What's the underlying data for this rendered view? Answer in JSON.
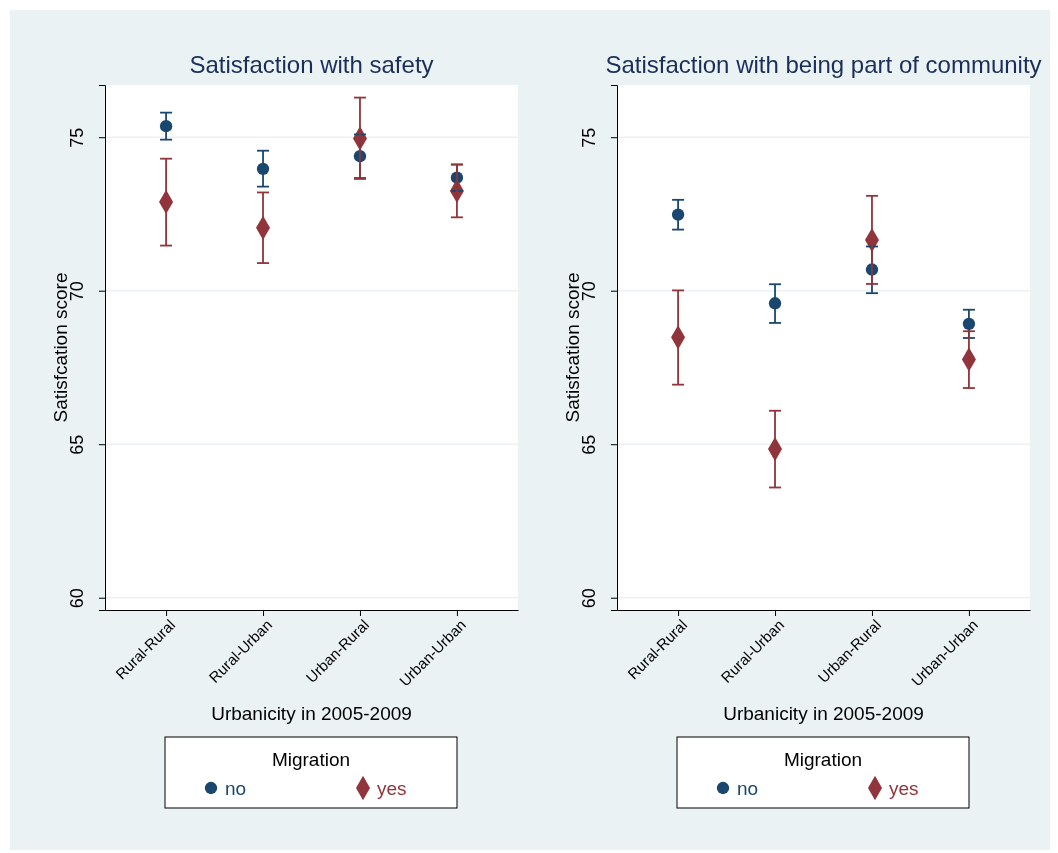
{
  "chart_data": [
    {
      "type": "scatter",
      "title": "Satisfaction with safety",
      "xlabel": "Urbanicity in 2005-2009",
      "ylabel": "Satisfcation score",
      "legend_title": "Migration",
      "legend": "bottom",
      "grid": "y",
      "categories": [
        "Rural-Rural",
        "Rural-Urban",
        "Urban-Rural",
        "Urban-Urban"
      ],
      "ylim": [
        59.6,
        76.7
      ],
      "yticks": [
        60,
        65,
        70,
        75
      ],
      "series": [
        {
          "name": "no",
          "color": "#1a476f",
          "marker": "circle",
          "values": [
            75.36,
            73.97,
            74.38,
            73.68
          ],
          "errors": [
            [
              74.92,
              75.8
            ],
            [
              73.39,
              74.56
            ],
            [
              73.67,
              75.09
            ],
            [
              73.25,
              74.11
            ]
          ]
        },
        {
          "name": "yes",
          "color": "#90353b",
          "marker": "diamond",
          "values": [
            72.89,
            72.05,
            74.96,
            73.25
          ],
          "errors": [
            [
              71.47,
              74.3
            ],
            [
              70.9,
              73.2
            ],
            [
              73.64,
              76.29
            ],
            [
              72.39,
              74.11
            ]
          ]
        }
      ]
    },
    {
      "type": "scatter",
      "title": "Satisfaction with being part of community",
      "xlabel": "Urbanicity in 2005-2009",
      "ylabel": "Satisfcation score",
      "legend_title": "Migration",
      "legend": "bottom",
      "grid": "y",
      "categories": [
        "Rural-Rural",
        "Rural-Urban",
        "Urban-Rural",
        "Urban-Urban"
      ],
      "ylim": [
        59.6,
        76.7
      ],
      "yticks": [
        60,
        65,
        70,
        75
      ],
      "series": [
        {
          "name": "no",
          "color": "#1a476f",
          "marker": "circle",
          "values": [
            72.48,
            69.59,
            70.69,
            68.92
          ],
          "errors": [
            [
              71.99,
              72.96
            ],
            [
              68.95,
              70.21
            ],
            [
              69.92,
              71.44
            ],
            [
              68.46,
              69.38
            ]
          ]
        },
        {
          "name": "yes",
          "color": "#90353b",
          "marker": "diamond",
          "values": [
            68.48,
            64.84,
            71.65,
            67.76
          ],
          "errors": [
            [
              66.94,
              70.01
            ],
            [
              63.59,
              66.09
            ],
            [
              70.22,
              73.09
            ],
            [
              66.83,
              68.68
            ]
          ]
        }
      ]
    }
  ]
}
